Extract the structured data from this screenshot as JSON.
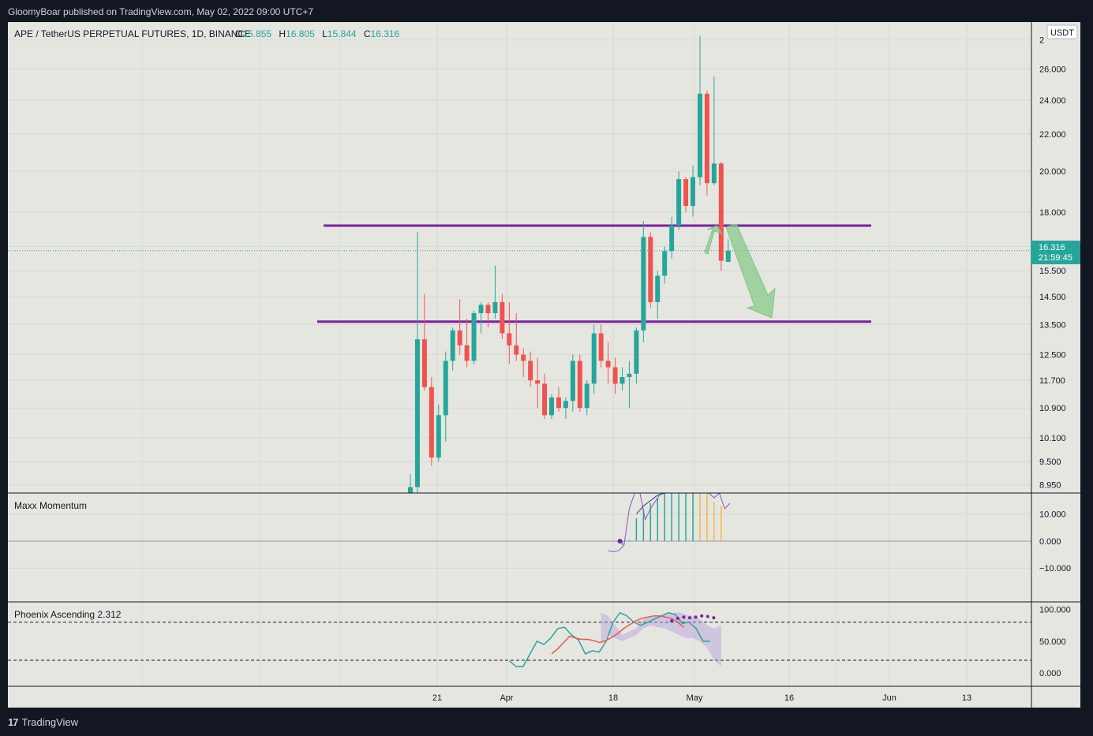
{
  "header": {
    "published": "GloomyBoar published on TradingView.com, May 02, 2022 09:00 UTC+7"
  },
  "footer": {
    "brand": "TradingView",
    "logo": "17"
  },
  "symbol": {
    "title": "APE / TetherUS PERPETUAL FUTURES, 1D, BINANCE",
    "o_label": "O",
    "o_value": "15.855",
    "h_label": "H",
    "h_value": "16.805",
    "l_label": "L",
    "l_value": "15.844",
    "c_label": "C",
    "c_value": "16.316"
  },
  "currency": "USDT",
  "price_badge": {
    "price": "16.316",
    "countdown": "21:59:45"
  },
  "colors": {
    "up": "#26a69a",
    "down": "#ef5350",
    "level": "#7b1fa2",
    "arrow": "#81c784",
    "hist": "#26a69a",
    "hist_down": "#f5b53f",
    "momentum": "#7e57c2",
    "sig": "#1e3a8a"
  },
  "chart_data": [
    {
      "type": "candlestick",
      "name": "price",
      "y_scale": "log",
      "ylim": [
        8.8,
        29.2
      ],
      "y_ticks": [
        "2",
        "26.000",
        "24.000",
        "22.000",
        "20.000",
        "18.000",
        "16.500",
        "15.500",
        "14.500",
        "13.500",
        "12.500",
        "11.700",
        "10.900",
        "10.100",
        "9.500",
        "8.950"
      ],
      "x_ticks": [
        "21",
        "Apr",
        "18",
        "May",
        "16",
        "Jun",
        "13"
      ],
      "ohlc": [
        [
          8.0,
          9.2,
          7.8,
          8.9
        ],
        [
          8.9,
          17.1,
          8.7,
          13.0
        ],
        [
          13.0,
          14.6,
          11.4,
          11.5
        ],
        [
          11.5,
          11.8,
          9.4,
          9.6
        ],
        [
          9.6,
          11.0,
          9.5,
          10.7
        ],
        [
          10.7,
          12.6,
          10.0,
          12.3
        ],
        [
          12.3,
          13.4,
          12.0,
          13.3
        ],
        [
          13.3,
          14.4,
          12.5,
          12.8
        ],
        [
          12.8,
          13.7,
          12.1,
          12.3
        ],
        [
          12.3,
          14.0,
          12.2,
          13.9
        ],
        [
          13.9,
          14.3,
          13.2,
          14.2
        ],
        [
          14.2,
          14.3,
          13.4,
          13.9
        ],
        [
          13.9,
          15.7,
          13.7,
          14.3
        ],
        [
          14.3,
          14.6,
          13.0,
          13.2
        ],
        [
          13.2,
          14.3,
          12.2,
          12.8
        ],
        [
          12.8,
          13.9,
          12.3,
          12.5
        ],
        [
          12.5,
          12.7,
          11.8,
          12.3
        ],
        [
          12.3,
          12.6,
          11.5,
          11.7
        ],
        [
          11.7,
          12.4,
          10.9,
          11.6
        ],
        [
          11.6,
          11.9,
          10.6,
          10.7
        ],
        [
          10.7,
          11.3,
          10.6,
          11.2
        ],
        [
          11.2,
          11.5,
          10.8,
          10.9
        ],
        [
          10.9,
          11.2,
          10.6,
          11.1
        ],
        [
          11.1,
          12.5,
          10.8,
          12.3
        ],
        [
          12.3,
          12.5,
          10.8,
          10.9
        ],
        [
          10.9,
          11.7,
          10.7,
          11.6
        ],
        [
          11.6,
          13.5,
          11.3,
          13.2
        ],
        [
          13.2,
          13.5,
          12.1,
          12.3
        ],
        [
          12.3,
          12.9,
          11.6,
          12.1
        ],
        [
          12.1,
          12.4,
          11.3,
          11.6
        ],
        [
          11.6,
          12.1,
          11.4,
          11.8
        ],
        [
          11.8,
          12.3,
          10.9,
          11.9
        ],
        [
          11.9,
          13.4,
          11.6,
          13.3
        ],
        [
          13.3,
          17.6,
          12.9,
          16.9
        ],
        [
          16.9,
          17.1,
          14.1,
          14.3
        ],
        [
          14.3,
          15.5,
          13.7,
          15.3
        ],
        [
          15.3,
          16.5,
          15.0,
          16.3
        ],
        [
          16.3,
          17.8,
          16.0,
          17.4
        ],
        [
          17.4,
          20.0,
          17.2,
          19.6
        ],
        [
          19.6,
          19.7,
          18.0,
          18.3
        ],
        [
          18.3,
          20.3,
          17.8,
          19.7
        ],
        [
          19.7,
          28.3,
          19.3,
          24.4
        ],
        [
          24.4,
          24.6,
          18.8,
          19.4
        ],
        [
          19.4,
          25.5,
          19.3,
          20.4
        ],
        [
          20.4,
          20.5,
          15.5,
          15.9
        ],
        [
          15.855,
          16.805,
          15.844,
          16.316
        ]
      ],
      "levels": [
        17.4,
        13.6
      ]
    },
    {
      "type": "bar",
      "name": "Maxx Momentum",
      "ylim": [
        -22.5,
        17.8
      ],
      "y_ticks": [
        "10.000",
        "0.000",
        "−10.000"
      ],
      "histogram": [
        -1.5,
        0.3,
        8.5,
        12,
        14,
        16,
        18,
        19,
        19.5,
        20,
        20.5,
        19.8,
        18.5,
        14.5,
        13
      ],
      "momentum": [
        -3.5,
        -4.0,
        -3.5,
        -1.5,
        12,
        24,
        20,
        8.0,
        12,
        15,
        18,
        20,
        23,
        26,
        30,
        28,
        30,
        25,
        29,
        20,
        16,
        20,
        12,
        14
      ],
      "signal": [
        10,
        13,
        15,
        17,
        19,
        21,
        23,
        25,
        27
      ]
    },
    {
      "type": "line",
      "name": "Phoenix Ascending 2.312",
      "ylim": [
        -21,
        112
      ],
      "y_ticks": [
        "100.000",
        "50.000",
        "0.000"
      ],
      "hlines": [
        80,
        20
      ],
      "series": [
        {
          "name": "",
          "values": [
            19,
            10,
            10,
            30,
            50,
            45,
            55,
            70,
            72,
            60,
            52,
            30,
            35,
            33,
            50,
            80,
            95,
            90,
            80,
            75,
            80,
            85,
            90,
            95,
            92,
            78,
            80,
            70,
            50,
            50
          ]
        },
        {
          "name": "",
          "values": [
            30,
            38,
            48,
            58,
            55,
            53,
            53,
            51,
            48,
            51,
            56,
            62,
            70,
            76,
            82,
            86,
            88,
            90,
            90,
            88,
            86,
            80,
            72
          ]
        },
        {
          "name": "",
          "values": [
            82,
            86,
            88,
            87,
            88,
            90,
            89,
            87
          ]
        }
      ],
      "band_upper": [
        95,
        90,
        75,
        60,
        65,
        70,
        85,
        88,
        90,
        92,
        94,
        96,
        92,
        90,
        85,
        75,
        70,
        75
      ],
      "band_lower": [
        45,
        60,
        55,
        50,
        55,
        60,
        70,
        75,
        72,
        70,
        65,
        60,
        55,
        55,
        50,
        40,
        20,
        10
      ]
    }
  ]
}
